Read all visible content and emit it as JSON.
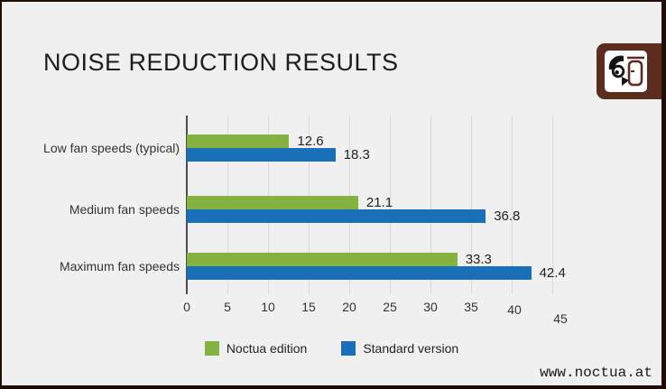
{
  "page": {
    "title": "NOISE REDUCTION RESULTS",
    "website": "www.noctua.at",
    "logo": "noctua-owl-logo"
  },
  "colors": {
    "background": "#f0f0f0",
    "frame": "#200d06",
    "logo_brown": "#5c2d1e",
    "noctua_green": "#84b340",
    "standard_blue": "#1a70b8",
    "gridline": "#d9d9d9",
    "axis": "#4d4d4d"
  },
  "chart_data": {
    "type": "bar",
    "orientation": "horizontal",
    "title": "NOISE REDUCTION RESULTS",
    "categories": [
      "Low fan speeds (typical)",
      "Medium fan speeds",
      "Maximum fan speeds"
    ],
    "series": [
      {
        "name": "Noctua edition",
        "color": "#84b340",
        "values": [
          12.6,
          21.1,
          33.3
        ]
      },
      {
        "name": "Standard version",
        "color": "#1a70b8",
        "values": [
          18.3,
          36.8,
          42.4
        ]
      }
    ],
    "xlabel": "",
    "ylabel": "",
    "xlim": [
      0,
      45
    ],
    "xticks": [
      0,
      5,
      10,
      15,
      20,
      25,
      30,
      35,
      40,
      45
    ],
    "grid": true,
    "value_labels": true,
    "legend_position": "bottom"
  }
}
